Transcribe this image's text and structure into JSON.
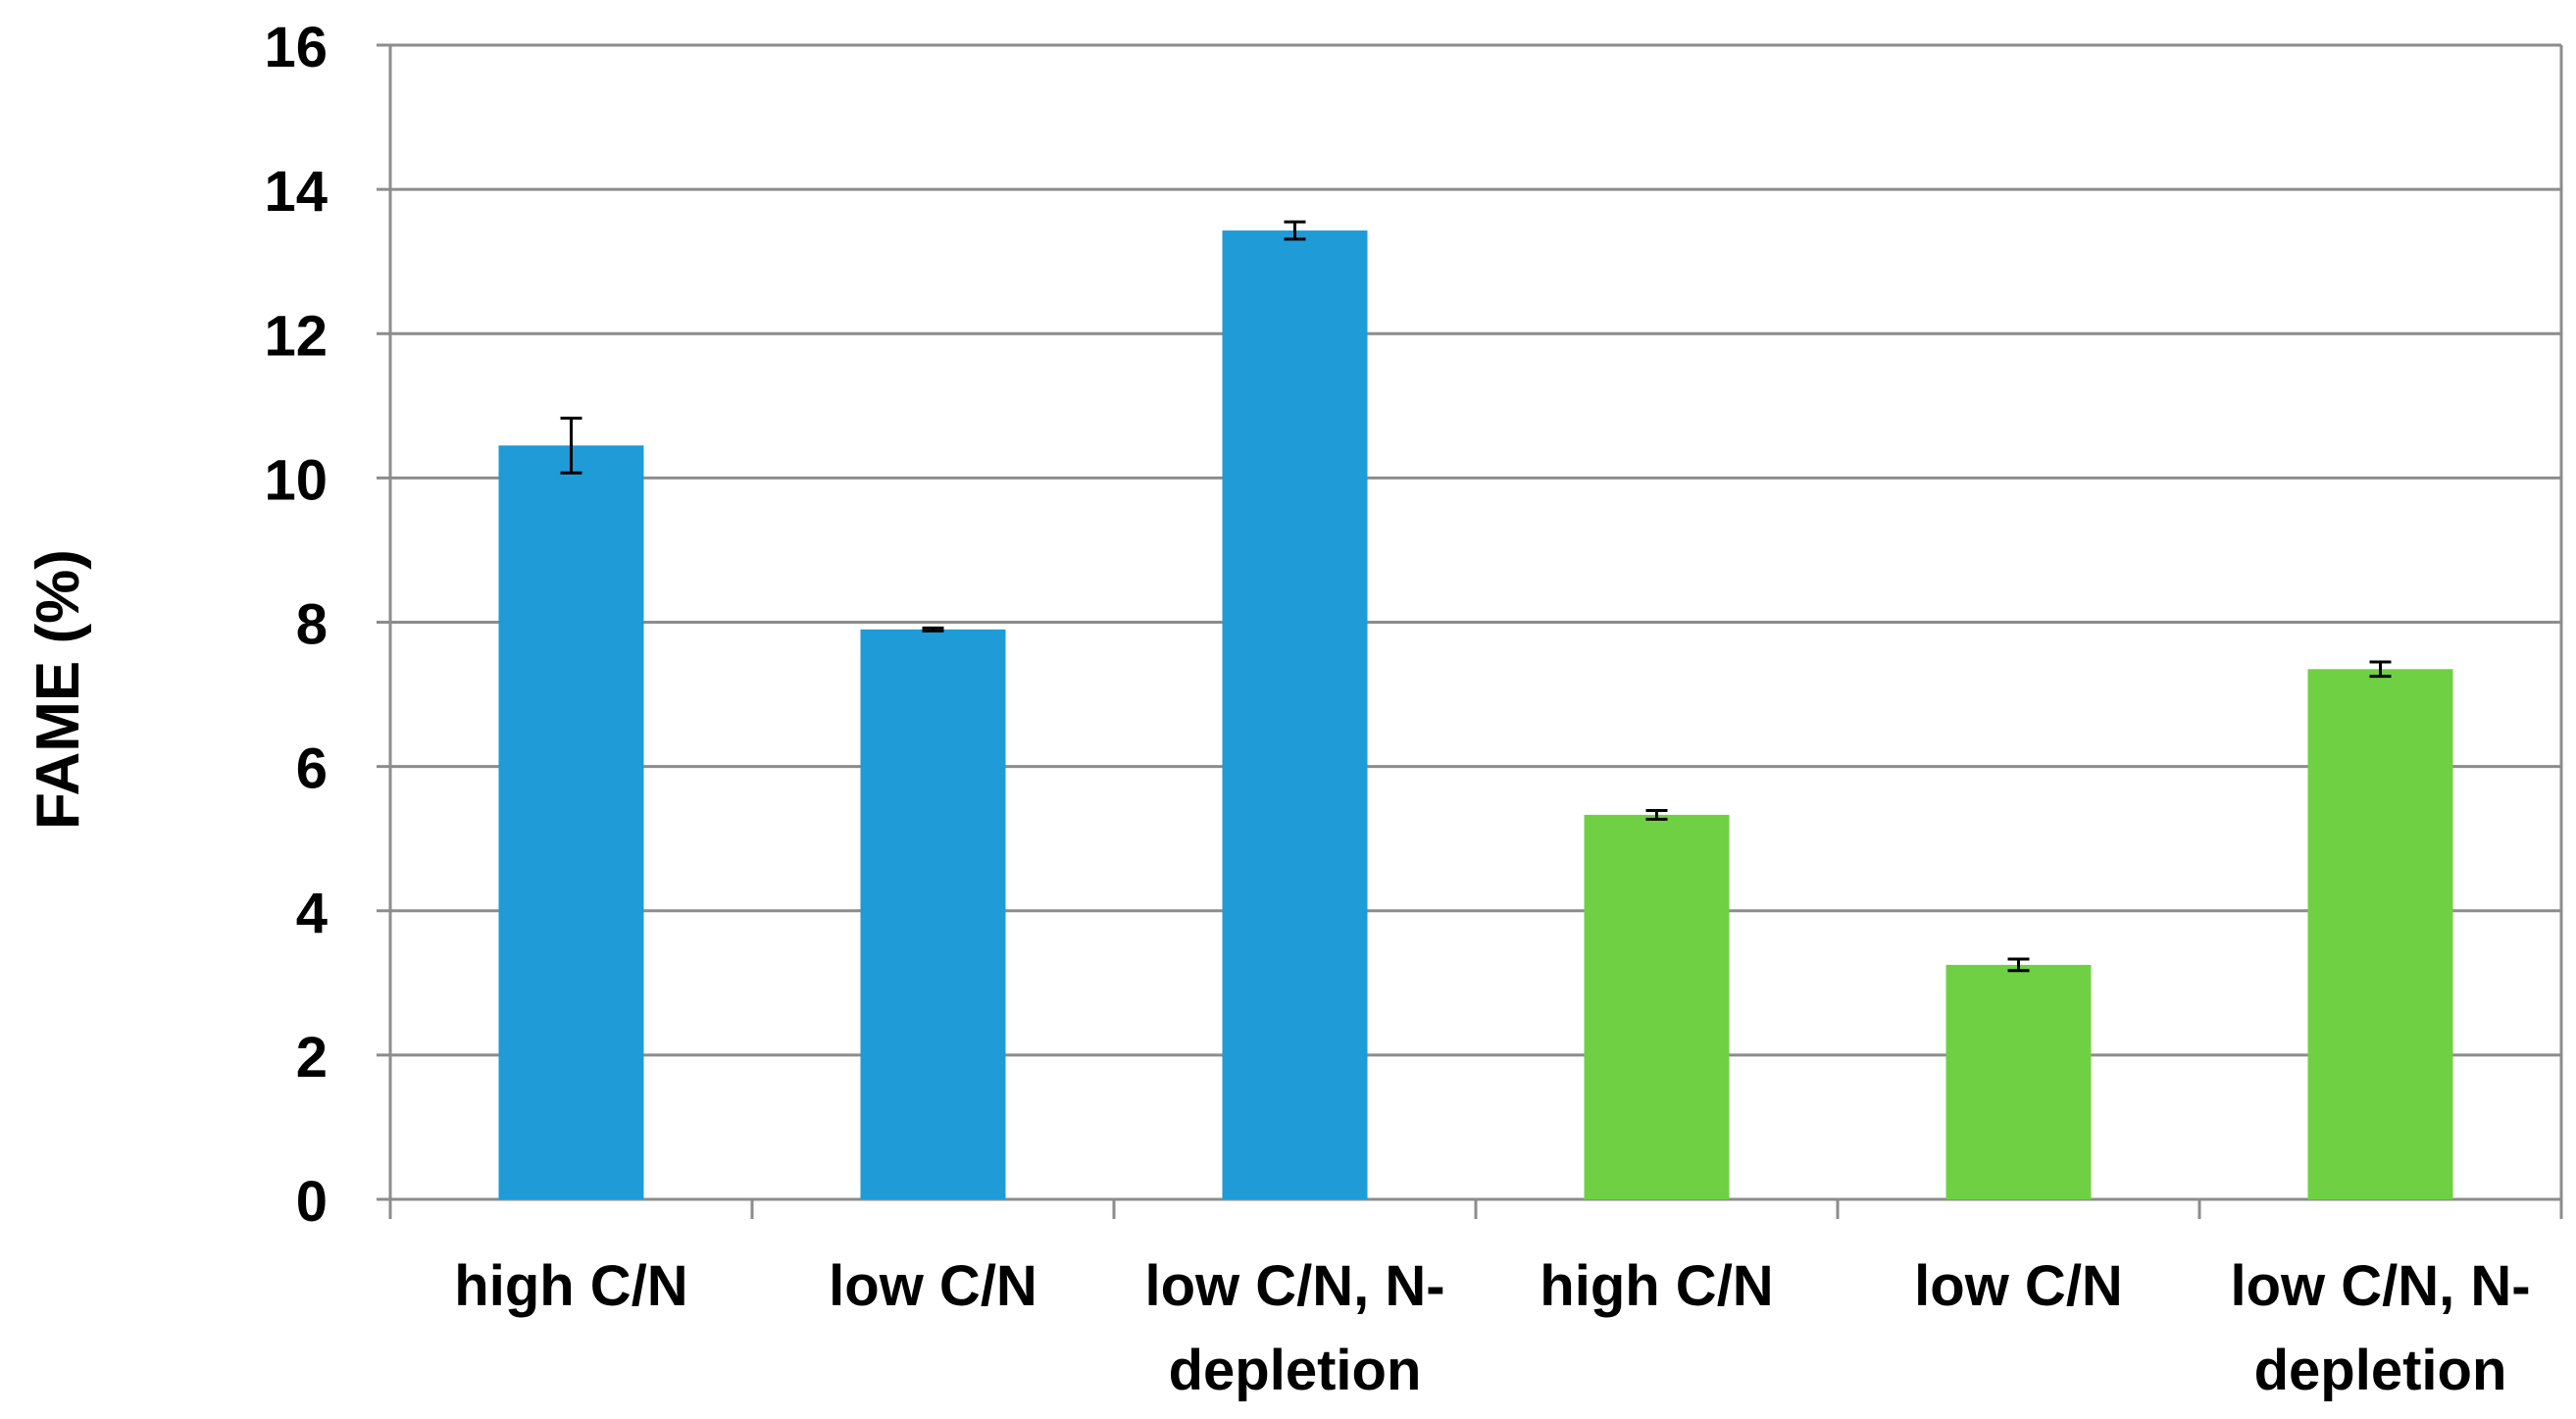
{
  "chart_data": {
    "type": "bar",
    "title": "",
    "xlabel": "",
    "ylabel": "FAME (%)",
    "ylim": [
      0,
      16
    ],
    "yticks": [
      "0",
      "2",
      "4",
      "6",
      "8",
      "10",
      "12",
      "14",
      "16"
    ],
    "grid": true,
    "categories": [
      [
        "high C/N"
      ],
      [
        "low C/N"
      ],
      [
        "low C/N, N-",
        "depletion"
      ],
      [
        "high C/N"
      ],
      [
        "low C/N"
      ],
      [
        "low C/N, N-",
        "depletion"
      ]
    ],
    "values": [
      10.45,
      7.9,
      13.43,
      5.33,
      3.25,
      7.35
    ],
    "errors": [
      0.38,
      0.02,
      0.12,
      0.06,
      0.08,
      0.1
    ],
    "colors": [
      "#1f9bd7",
      "#1f9bd7",
      "#1f9bd7",
      "#6fd043",
      "#6fd043",
      "#6fd043"
    ]
  }
}
